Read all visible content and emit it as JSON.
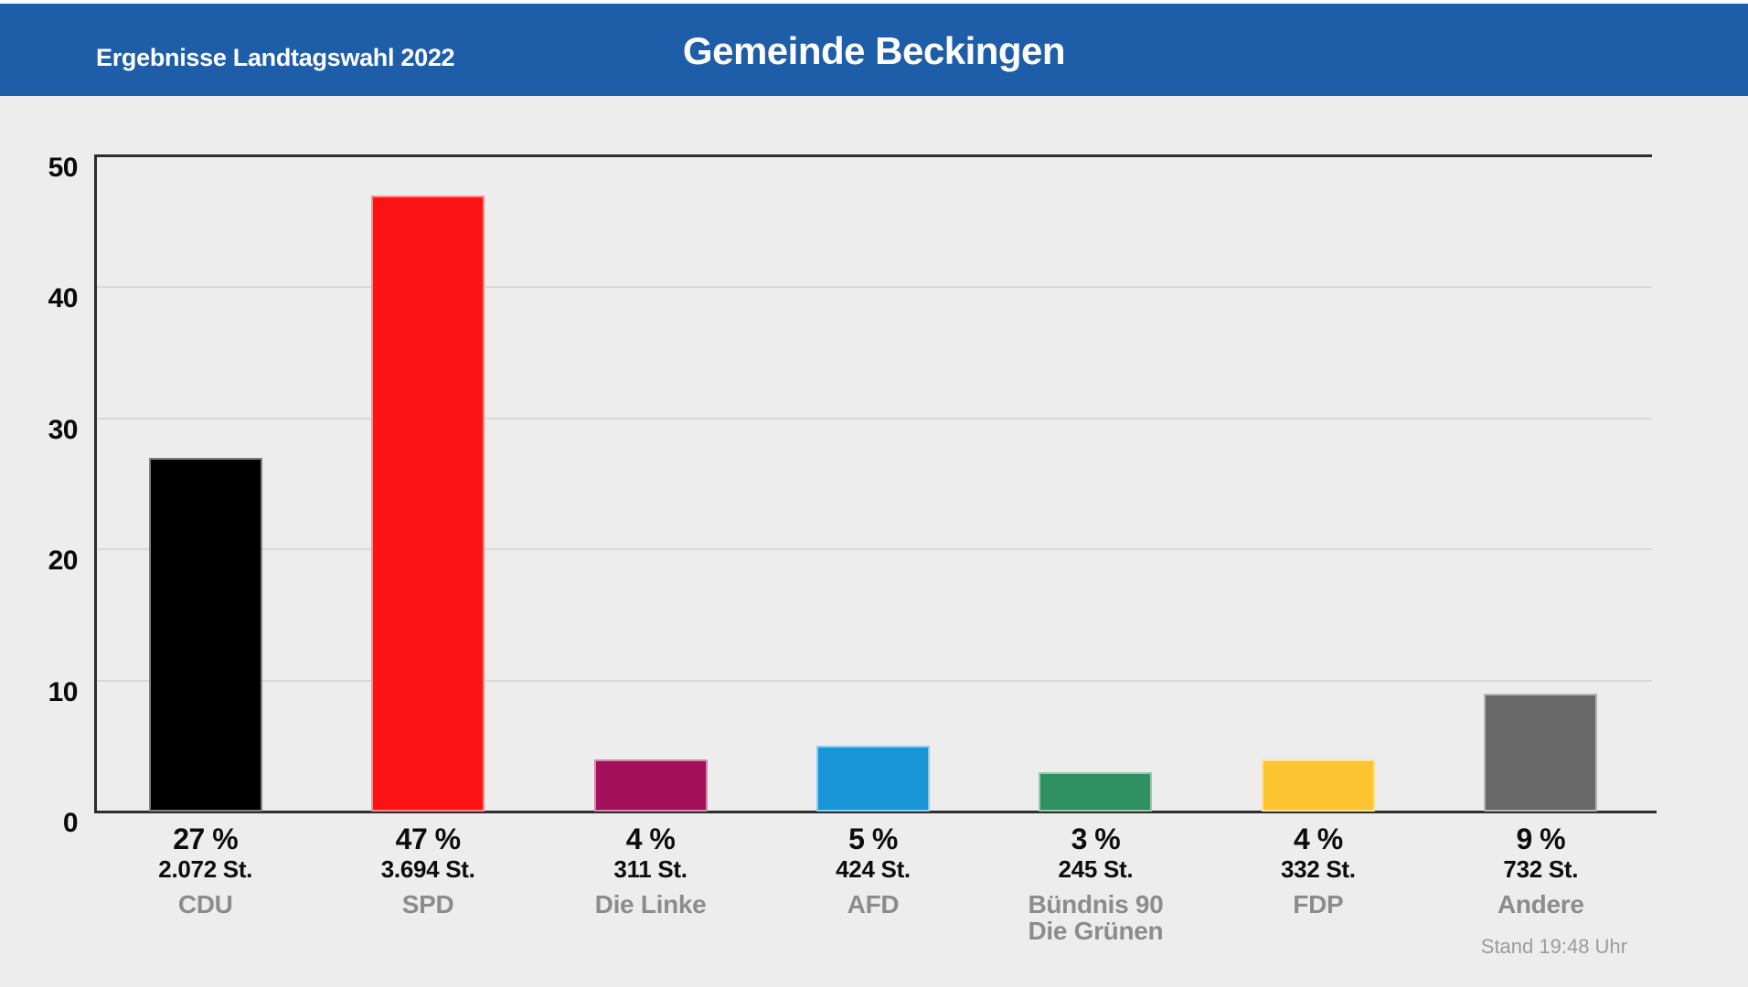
{
  "header": {
    "subtitle": "Ergebnisse Landtagswahl 2022",
    "title": "Gemeinde Beckingen"
  },
  "footer": {
    "status": "Stand 19:48 Uhr"
  },
  "colors": {
    "header_bg": "#1e5ea9",
    "page_bg": "#ededed",
    "axis": "#2d2d2d",
    "gridline": "#d8d8d8",
    "value_text": "#0d0d0d",
    "party_text": "#8c8c8c",
    "status_text": "#9c9c9c"
  },
  "chart_data": {
    "type": "bar",
    "title": "Gemeinde Beckingen",
    "subtitle": "Ergebnisse Landtagswahl 2022",
    "ylabel": "",
    "xlabel": "",
    "ylim": [
      0,
      50
    ],
    "yticks": [
      0,
      10,
      20,
      30,
      40,
      50
    ],
    "grid": true,
    "legend": false,
    "categories": [
      "CDU",
      "SPD",
      "Die Linke",
      "AFD",
      "Bündnis 90 Die Grünen",
      "FDP",
      "Andere"
    ],
    "values": [
      27,
      47,
      4,
      5,
      3,
      4,
      9
    ],
    "bars": [
      {
        "party_lines": [
          "CDU"
        ],
        "percent": 27,
        "percent_label": "27 %",
        "votes_label": "2.072 St.",
        "color": "#000000"
      },
      {
        "party_lines": [
          "SPD"
        ],
        "percent": 47,
        "percent_label": "47 %",
        "votes_label": "3.694 St.",
        "color": "#fc1414"
      },
      {
        "party_lines": [
          "Die Linke"
        ],
        "percent": 4,
        "percent_label": "4 %",
        "votes_label": "311 St.",
        "color": "#a31059"
      },
      {
        "party_lines": [
          "AFD"
        ],
        "percent": 5,
        "percent_label": "5 %",
        "votes_label": "424 St.",
        "color": "#1996d8"
      },
      {
        "party_lines": [
          "Bündnis 90",
          "Die Grünen"
        ],
        "percent": 3,
        "percent_label": "3 %",
        "votes_label": "245 St.",
        "color": "#2f9162"
      },
      {
        "party_lines": [
          "FDP"
        ],
        "percent": 4,
        "percent_label": "4 %",
        "votes_label": "332 St.",
        "color": "#fdc431"
      },
      {
        "party_lines": [
          "Andere"
        ],
        "percent": 9,
        "percent_label": "9 %",
        "votes_label": "732 St.",
        "color": "#696969"
      }
    ]
  }
}
